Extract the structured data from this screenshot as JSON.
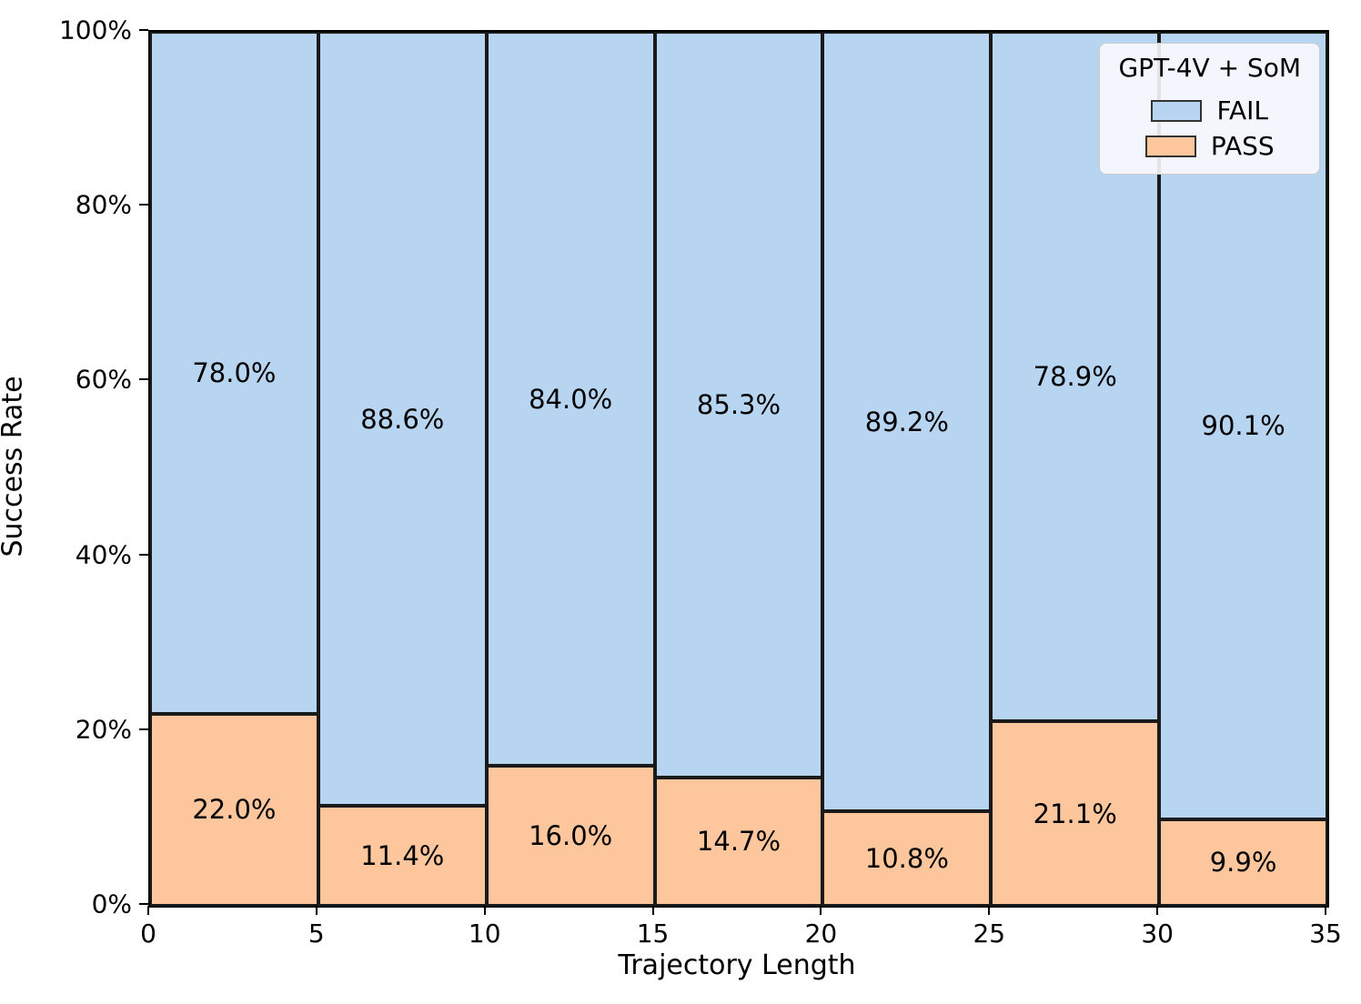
{
  "chart_data": {
    "type": "bar",
    "stacked": true,
    "orientation": "vertical",
    "title": "",
    "xlabel": "Trajectory Length",
    "ylabel": "Success Rate",
    "xlim": [
      0,
      35
    ],
    "ylim": [
      0,
      100
    ],
    "grid": false,
    "bin_width": 5,
    "bins": [
      [
        0,
        5
      ],
      [
        5,
        10
      ],
      [
        10,
        15
      ],
      [
        15,
        20
      ],
      [
        20,
        25
      ],
      [
        25,
        30
      ],
      [
        30,
        35
      ]
    ],
    "x_ticks": [
      {
        "value": 0,
        "label": "0"
      },
      {
        "value": 5,
        "label": "5"
      },
      {
        "value": 10,
        "label": "10"
      },
      {
        "value": 15,
        "label": "15"
      },
      {
        "value": 20,
        "label": "20"
      },
      {
        "value": 25,
        "label": "25"
      },
      {
        "value": 30,
        "label": "30"
      },
      {
        "value": 35,
        "label": "35"
      }
    ],
    "y_ticks": [
      {
        "value": 0,
        "label": "0%"
      },
      {
        "value": 20,
        "label": "20%"
      },
      {
        "value": 40,
        "label": "40%"
      },
      {
        "value": 60,
        "label": "60%"
      },
      {
        "value": 80,
        "label": "80%"
      },
      {
        "value": 100,
        "label": "100%"
      }
    ],
    "series": [
      {
        "name": "FAIL",
        "color": "#b7d4f0",
        "edge_color": "#1a1a1a",
        "values": [
          78.0,
          88.6,
          84.0,
          85.3,
          89.2,
          78.9,
          90.1
        ],
        "labels": [
          "78.0%",
          "88.6%",
          "84.0%",
          "85.3%",
          "89.2%",
          "78.9%",
          "90.1%"
        ]
      },
      {
        "name": "PASS",
        "color": "#fdc69c",
        "edge_color": "#1a1a1a",
        "values": [
          22.0,
          11.4,
          16.0,
          14.7,
          10.8,
          21.1,
          9.9
        ],
        "labels": [
          "22.0%",
          "11.4%",
          "16.0%",
          "14.7%",
          "10.8%",
          "21.1%",
          "9.9%"
        ]
      }
    ],
    "legend": {
      "title": "GPT-4V + SoM",
      "position": "upper-right",
      "entries": [
        {
          "label": "FAIL",
          "color": "#b7d4f0"
        },
        {
          "label": "PASS",
          "color": "#fdc69c"
        }
      ]
    }
  }
}
